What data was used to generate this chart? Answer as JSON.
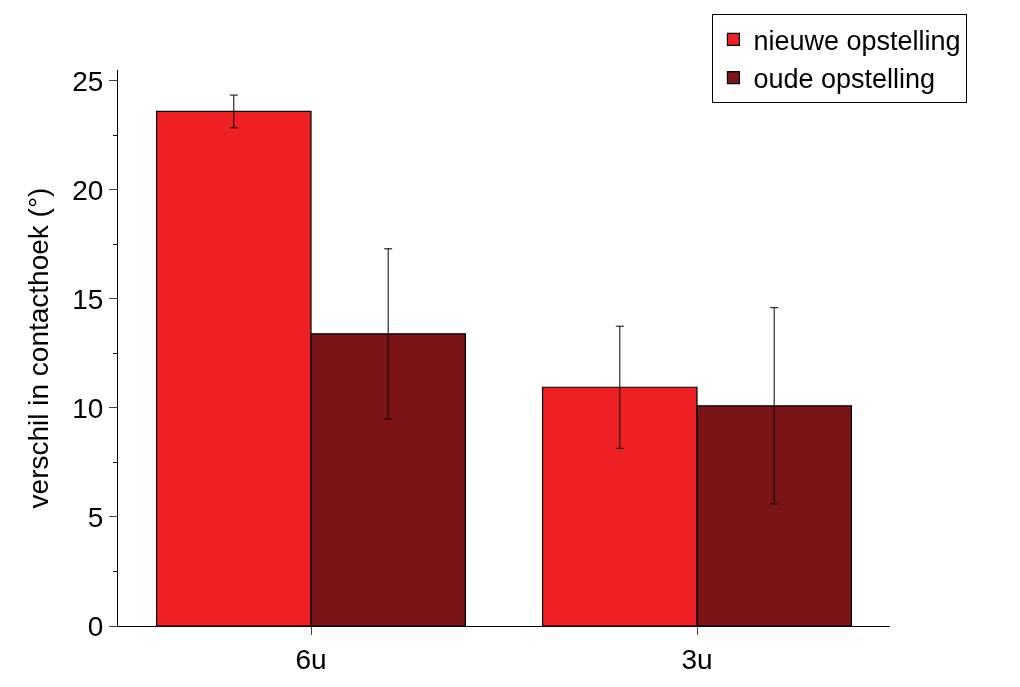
{
  "chart_data": {
    "type": "bar",
    "ylabel": "verschil in contacthoek (°)",
    "categories": [
      "6u",
      "3u"
    ],
    "series": [
      {
        "name": "nieuwe opstelling",
        "color": "#ee2024",
        "values": [
          23.6,
          10.95
        ],
        "errors": [
          0.75,
          2.8
        ]
      },
      {
        "name": "oude opstelling",
        "color": "#7b1416",
        "values": [
          13.4,
          10.1
        ],
        "errors": [
          3.9,
          4.5
        ]
      }
    ],
    "ylim": [
      0,
      25.5
    ],
    "yticks": [
      0,
      {
        "value": 2.5,
        "label": null
      },
      5,
      {
        "value": 7.5,
        "label": null
      },
      10,
      {
        "value": 12.5,
        "label": null
      },
      15,
      {
        "value": 17.5,
        "label": null
      },
      20,
      {
        "value": 22.5,
        "label": null
      },
      25
    ],
    "legend": "top right"
  }
}
